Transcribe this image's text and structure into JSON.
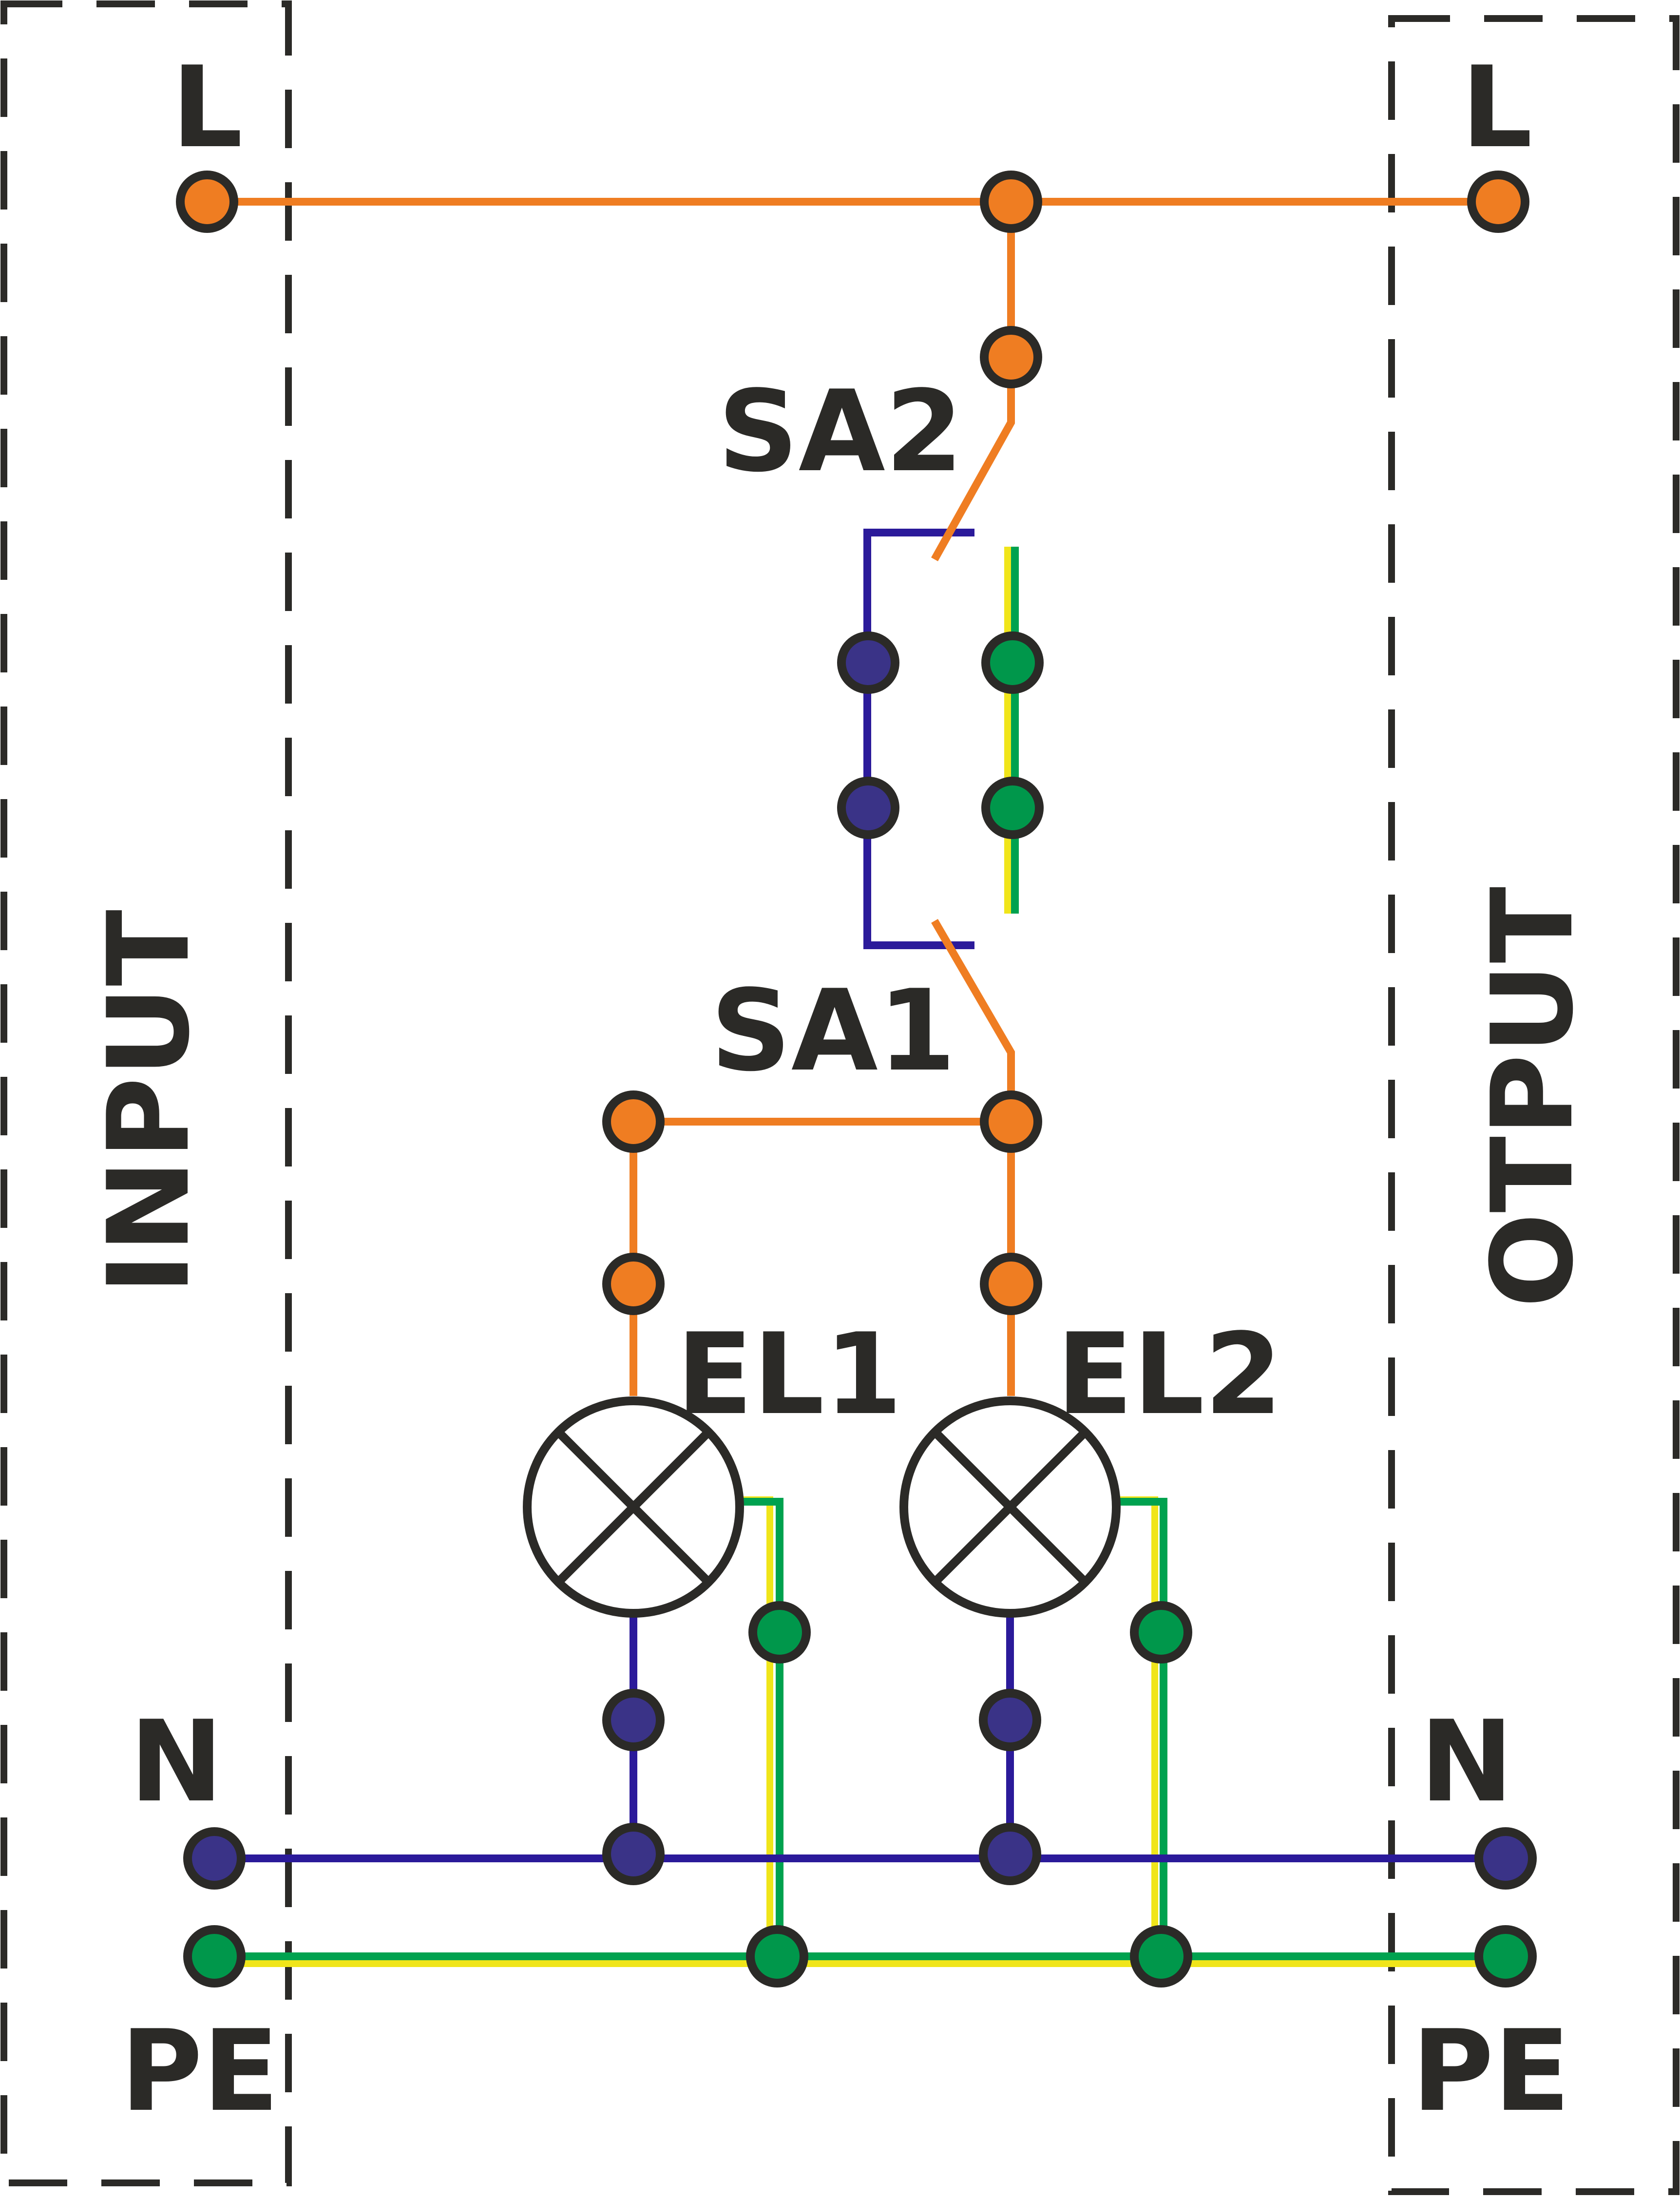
{
  "diagram": {
    "input_label": "INPUT",
    "output_label": "OTPUT",
    "terminals": {
      "input_l": "L",
      "input_n": "N",
      "input_pe": "PE",
      "output_l": "L",
      "output_n": "N",
      "output_pe": "PE"
    },
    "components": {
      "switch_sa2": "SA2",
      "switch_sa1": "SA1",
      "lamp_el1": "EL1",
      "lamp_el2": "EL2"
    },
    "colors": {
      "phase": "#ef7d22",
      "neutral": "#2b1a9a",
      "earth_green": "#00a24f",
      "earth_yellow": "#f0e51a",
      "outline": "#2b2a27",
      "neutral_fill": "#3a3387",
      "earth_fill": "#00974b"
    }
  }
}
